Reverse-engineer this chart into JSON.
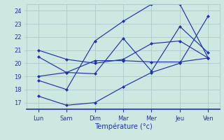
{
  "days": [
    "Lun",
    "Sam",
    "Dim",
    "Mar",
    "Mer",
    "Jeu",
    "Ven"
  ],
  "xlabel": "Température (°c)",
  "ylim": [
    16.5,
    24.5
  ],
  "yticks": [
    17,
    18,
    19,
    20,
    21,
    22,
    23,
    24
  ],
  "background_color": "#cce8e0",
  "grid_color": "#aacccc",
  "line_color": "#2233aa",
  "series": [
    [
      17.5,
      16.8,
      17.0,
      18.2,
      19.3,
      20.0,
      23.6
    ],
    [
      20.5,
      19.3,
      20.2,
      20.2,
      20.1,
      20.1,
      20.4
    ],
    [
      21.0,
      20.3,
      20.0,
      20.3,
      21.5,
      21.7,
      20.4
    ],
    [
      18.7,
      18.0,
      21.7,
      23.2,
      24.5,
      24.5,
      20.4
    ],
    [
      19.0,
      19.3,
      19.2,
      21.9,
      19.4,
      22.8,
      20.8
    ]
  ],
  "figsize": [
    3.2,
    2.0
  ],
  "dpi": 100
}
